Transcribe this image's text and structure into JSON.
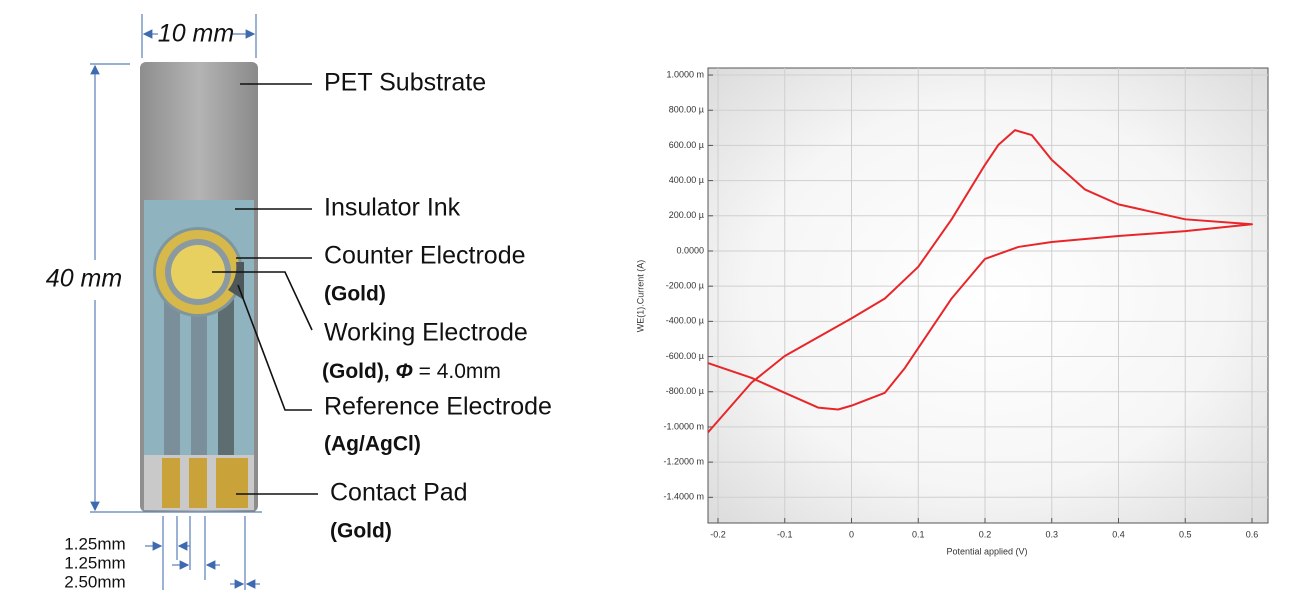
{
  "diagram": {
    "width_label": "10 mm",
    "height_label": "40 mm",
    "labels": {
      "substrate": "PET Substrate",
      "insulator": "Insulator Ink",
      "counter": "Counter Electrode",
      "counter_material": "(Gold)",
      "working": "Working Electrode",
      "working_material": "(Gold), ",
      "working_symbol": "Φ",
      "working_diameter": " = 4.0mm",
      "reference": "Reference Electrode",
      "reference_material": "(Ag/AgCl)",
      "pad": "Contact Pad",
      "pad_material": "(Gold)"
    },
    "dimensions": [
      "1.25mm",
      "1.25mm",
      "2.50mm"
    ]
  },
  "chart_data": {
    "type": "line",
    "x_label": "Potential applied (V)",
    "y_label": "WE(1).Current (A)",
    "x": [
      -0.215,
      -0.15,
      -0.1,
      0,
      0.05,
      0.1,
      0.15,
      0.2,
      0.22,
      0.245,
      0.27,
      0.3,
      0.35,
      0.4,
      0.5,
      0.6,
      0.5,
      0.4,
      0.3,
      0.25,
      0.2,
      0.15,
      0.1,
      0.08,
      0.05,
      0,
      -0.02,
      -0.05,
      -0.1,
      -0.15,
      -0.215
    ],
    "series": [
      {
        "color": "#e8262a",
        "values": [
          -0.001031,
          -0.000749,
          -0.000597,
          -0.000383,
          -0.00027,
          -9e-05,
          0.00018,
          0.00049,
          0.000603,
          0.000687,
          0.000659,
          0.000518,
          0.000349,
          0.000265,
          0.00018,
          0.000152,
          0.000113,
          8.5e-05,
          5.1e-05,
          2.3e-05,
          -4.5e-05,
          -0.00027,
          -0.000552,
          -0.000665,
          -0.000806,
          -0.000879,
          -0.000901,
          -0.00089,
          -0.000806,
          -0.000721,
          -0.000637
        ]
      }
    ],
    "xlim": [
      -0.215,
      0.624
    ],
    "ylim": [
      -0.001546,
      0.00104
    ],
    "xticks": [
      -0.2,
      -0.1,
      0,
      0.1,
      0.2,
      0.3,
      0.4,
      0.5,
      0.6
    ],
    "yticks": [
      {
        "value": 0.001,
        "label": "1.0000 m"
      },
      {
        "value": 0.0008,
        "label": "800.00 µ"
      },
      {
        "value": 0.0006,
        "label": "600.00 µ"
      },
      {
        "value": 0.0004,
        "label": "400.00 µ"
      },
      {
        "value": 0.0002,
        "label": "200.00 µ"
      },
      {
        "value": 0,
        "label": "0.0000"
      },
      {
        "value": -0.0002,
        "label": "-200.00 µ"
      },
      {
        "value": -0.0004,
        "label": "-400.00 µ"
      },
      {
        "value": -0.0006,
        "label": "-600.00 µ"
      },
      {
        "value": -0.0008,
        "label": "-800.00 µ"
      },
      {
        "value": -0.001,
        "label": "-1.0000 m"
      },
      {
        "value": -0.0012,
        "label": "-1.2000 m"
      },
      {
        "value": -0.0014,
        "label": "-1.4000 m"
      }
    ],
    "grid": true
  }
}
